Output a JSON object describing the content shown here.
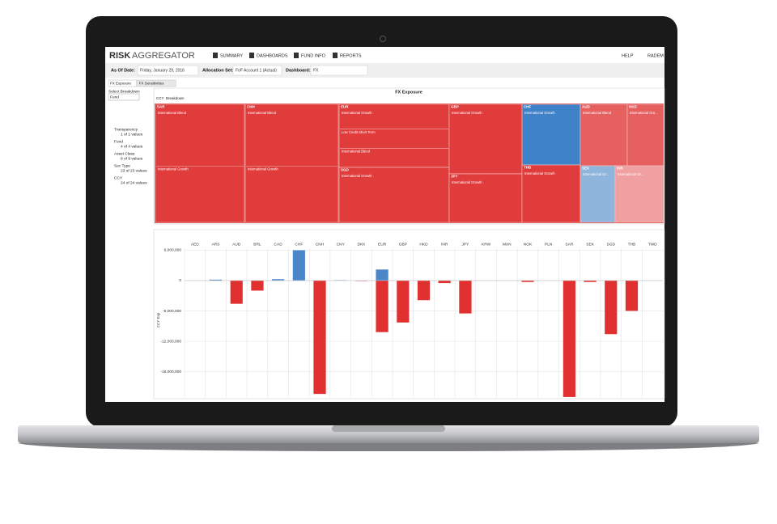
{
  "app": {
    "logo_a": "RISK",
    "logo_b": "AGGREGATOR",
    "nav": [
      "SUMMARY",
      "DASHBOARDS",
      "FUND INFO",
      "REPORTS"
    ],
    "user_nav": [
      "HELP",
      "RADEM"
    ]
  },
  "filters": {
    "as_of_label": "As Of Date:",
    "as_of": "Friday, January 29, 2016",
    "allocation_label": "Allocation Set:",
    "allocation": "FoF Account 1 (Actual)",
    "dashboard_label": "Dashboard:",
    "dashboard": "FX"
  },
  "tabs": [
    "FX Exposure",
    "FX Sensitivities"
  ],
  "sidebar": {
    "breakdown_label": "Select Breakdown",
    "breakdown": "Fund",
    "filters": [
      {
        "name": "Transparency",
        "count": "1 of 1 values"
      },
      {
        "name": "Fund",
        "count": "4 of 4 values"
      },
      {
        "name": "Asset Class",
        "count": "8 of 8 values"
      },
      {
        "name": "Sec Type",
        "count": "23 of 23 values"
      },
      {
        "name": "CCY",
        "count": "24 of 24 values"
      }
    ]
  },
  "treemap": {
    "title": "FX Exposure",
    "breadcrumbs": [
      "CCY",
      "Breakdown"
    ],
    "cells": [
      {
        "label": "SAR",
        "funds": [
          "International Blend",
          "International Growth"
        ]
      },
      {
        "label": "CNH",
        "funds": [
          "International Blend",
          "International Growth"
        ]
      },
      {
        "label": "EUR",
        "funds": [
          "International Growth",
          "Low Credit Short Term",
          "International Blend"
        ]
      },
      {
        "label": "SGD",
        "funds": [
          "International Growth"
        ]
      },
      {
        "label": "GBP",
        "funds": [
          "International Growth"
        ]
      },
      {
        "label": "JPY",
        "funds": [
          "International Growth"
        ]
      },
      {
        "label": "CHF",
        "funds": [
          "International Growth"
        ]
      },
      {
        "label": "THB",
        "funds": [
          "International Growth"
        ]
      },
      {
        "label": "AUD",
        "funds": [
          "International Blend"
        ]
      },
      {
        "label": "HKD",
        "funds": [
          "International Gro..."
        ]
      },
      {
        "label": "SEK",
        "funds": [
          "International Gr..."
        ]
      },
      {
        "label": "INR",
        "funds": [
          "International Gr..."
        ]
      }
    ]
  },
  "chart_data": {
    "type": "bar",
    "y_label": "CCY Exp",
    "categories": [
      "AED",
      "ARS",
      "AUD",
      "BRL",
      "CAD",
      "CHF",
      "CNH",
      "CNY",
      "DKK",
      "EUR",
      "GBP",
      "HKD",
      "INR",
      "JPY",
      "KRW",
      "MXN",
      "NOK",
      "PLN",
      "SAR",
      "SEK",
      "SGD",
      "THB",
      "TWD"
    ],
    "series": [
      {
        "color": "#4a86c8",
        "values": [
          0,
          200000,
          0,
          0,
          300000,
          6000000,
          0,
          100000,
          0,
          2200000,
          0,
          0,
          0,
          0,
          0,
          0,
          0,
          0,
          0,
          0,
          0,
          0,
          0
        ]
      },
      {
        "color": "#e03030",
        "values": [
          0,
          0,
          -4600000,
          -2000000,
          0,
          0,
          -22400000,
          0,
          -100000,
          -10200000,
          -8300000,
          -3900000,
          -500000,
          -6500000,
          0,
          0,
          -300000,
          0,
          -23000000,
          -300000,
          -10600000,
          -6000000,
          0
        ]
      }
    ],
    "ylim": [
      -23000000,
      7500000
    ],
    "yticks": [
      {
        "value": 6000000,
        "label": "6,000,000"
      },
      0,
      {
        "value": -6000000,
        "label": "-6,000,000"
      },
      {
        "value": -12000000,
        "label": "-12,000,000"
      },
      {
        "value": -18000000,
        "label": "-18,000,000"
      }
    ],
    "grid": true
  }
}
